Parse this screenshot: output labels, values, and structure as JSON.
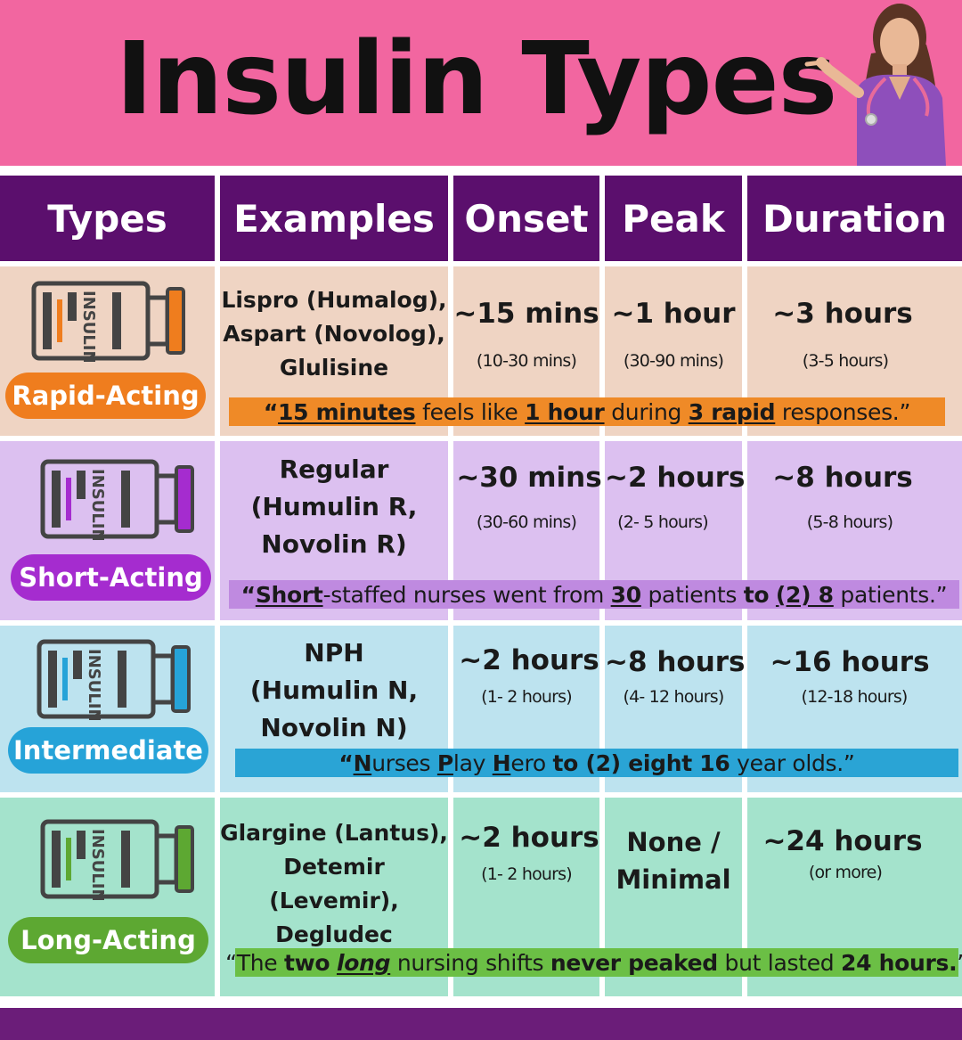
{
  "title": "Insulin Types",
  "headers": [
    "Types",
    "Examples",
    "Onset",
    "Peak",
    "Duration"
  ],
  "vial_label": "INSULIN",
  "colors": {
    "header_bg": "#f266a0",
    "column_header_bg": "#5b0f6d",
    "rapid": "#ef7d1e",
    "short": "#a52ccf",
    "intermediate": "#26a3d8",
    "long": "#5da832",
    "footer": "#6b1d79"
  },
  "rows": [
    {
      "type": "Rapid-Acting",
      "examples": [
        "Lispro (Humalog),",
        "Aspart (Novolog),",
        "Glulisine"
      ],
      "onset": "~15 mins",
      "onset_range": "(10-30 mins)",
      "peak": "~1 hour",
      "peak_range": "(30-90 mins)",
      "duration": "~3 hours",
      "duration_range": "(3-5 hours)",
      "mnemonic": {
        "q1": "“",
        "u1": "15 minutes",
        "t1": " feels like ",
        "u2": "1 hour",
        "t2": " during ",
        "u3": "3 rapid",
        "t3": " responses.”"
      }
    },
    {
      "type": "Short-Acting",
      "examples": [
        "Regular",
        "(Humulin R,",
        "Novolin R)"
      ],
      "onset": "~30 mins",
      "onset_range": "(30-60 mins)",
      "peak": "~2 hours",
      "peak_range": "(2- 5 hours)",
      "duration": "~8 hours",
      "duration_range": "(5-8 hours)",
      "mnemonic": {
        "q1": "“",
        "u1": "Short",
        "t1": "-staffed nurses went from ",
        "u2": "30",
        "t2": " patients ",
        "b1": "to",
        "t3": " ",
        "u3": "(2) 8",
        "t4": " patients.”"
      }
    },
    {
      "type": "Intermediate",
      "examples": [
        "NPH",
        "(Humulin N,",
        "Novolin N)"
      ],
      "onset": "~2 hours",
      "onset_range": "(1- 2 hours)",
      "peak": "~8 hours",
      "peak_range": "(4- 12 hours)",
      "duration": "~16 hours",
      "duration_range": "(12-18 hours)",
      "mnemonic": {
        "q1": "“",
        "u1": "N",
        "t1": "urses ",
        "u2": "P",
        "t2": "lay ",
        "u3": "H",
        "t3": "ero ",
        "b1": "to (2) eight 16",
        "t4": " year olds.”"
      }
    },
    {
      "type": "Long-Acting",
      "examples": [
        "Glargine (Lantus),",
        "Detemir (Levemir),",
        "Degludec"
      ],
      "onset": "~2 hours",
      "onset_range": "(1- 2 hours)",
      "peak": "None /\nMinimal",
      "peak_line1": "None /",
      "peak_line2": "Minimal",
      "duration": "~24 hours",
      "duration_range": "(or more)",
      "mnemonic": {
        "t1": "“The ",
        "b1": "two",
        "t2": " ",
        "u1": "long",
        "t3": " nursing shifts ",
        "b2": "never peaked",
        "t4": " but lasted ",
        "b3": "24 hours.",
        "t5": "”"
      }
    }
  ]
}
